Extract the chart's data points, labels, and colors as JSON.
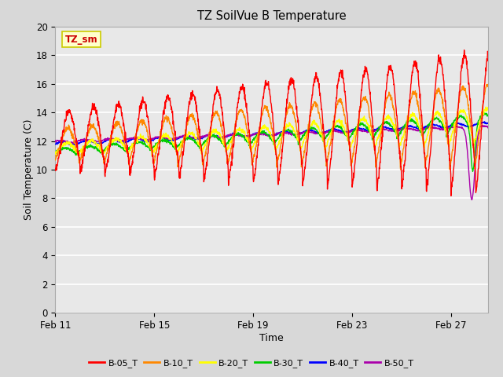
{
  "title": "TZ SoilVue B Temperature",
  "xlabel": "Time",
  "ylabel": "Soil Temperature (C)",
  "ylim": [
    0,
    20
  ],
  "yticks": [
    0,
    2,
    4,
    6,
    8,
    10,
    12,
    14,
    16,
    18,
    20
  ],
  "date_labels": [
    "Feb 11",
    "Feb 15",
    "Feb 19",
    "Feb 23",
    "Feb 27"
  ],
  "date_positions": [
    0,
    4,
    8,
    12,
    16
  ],
  "series_colors": {
    "B-05_T": "#ff0000",
    "B-10_T": "#ff8800",
    "B-20_T": "#ffff00",
    "B-30_T": "#00cc00",
    "B-40_T": "#0000ff",
    "B-50_T": "#aa00aa"
  },
  "annotation_text": "TZ_sm",
  "annotation_box_color": "#ffffcc",
  "annotation_text_color": "#cc0000",
  "annotation_border_color": "#cccc00",
  "fig_bg_color": "#d8d8d8",
  "plot_bg_color": "#e8e8e8",
  "grid_color": "#ffffff",
  "n_days": 17.5,
  "points_per_day": 96
}
